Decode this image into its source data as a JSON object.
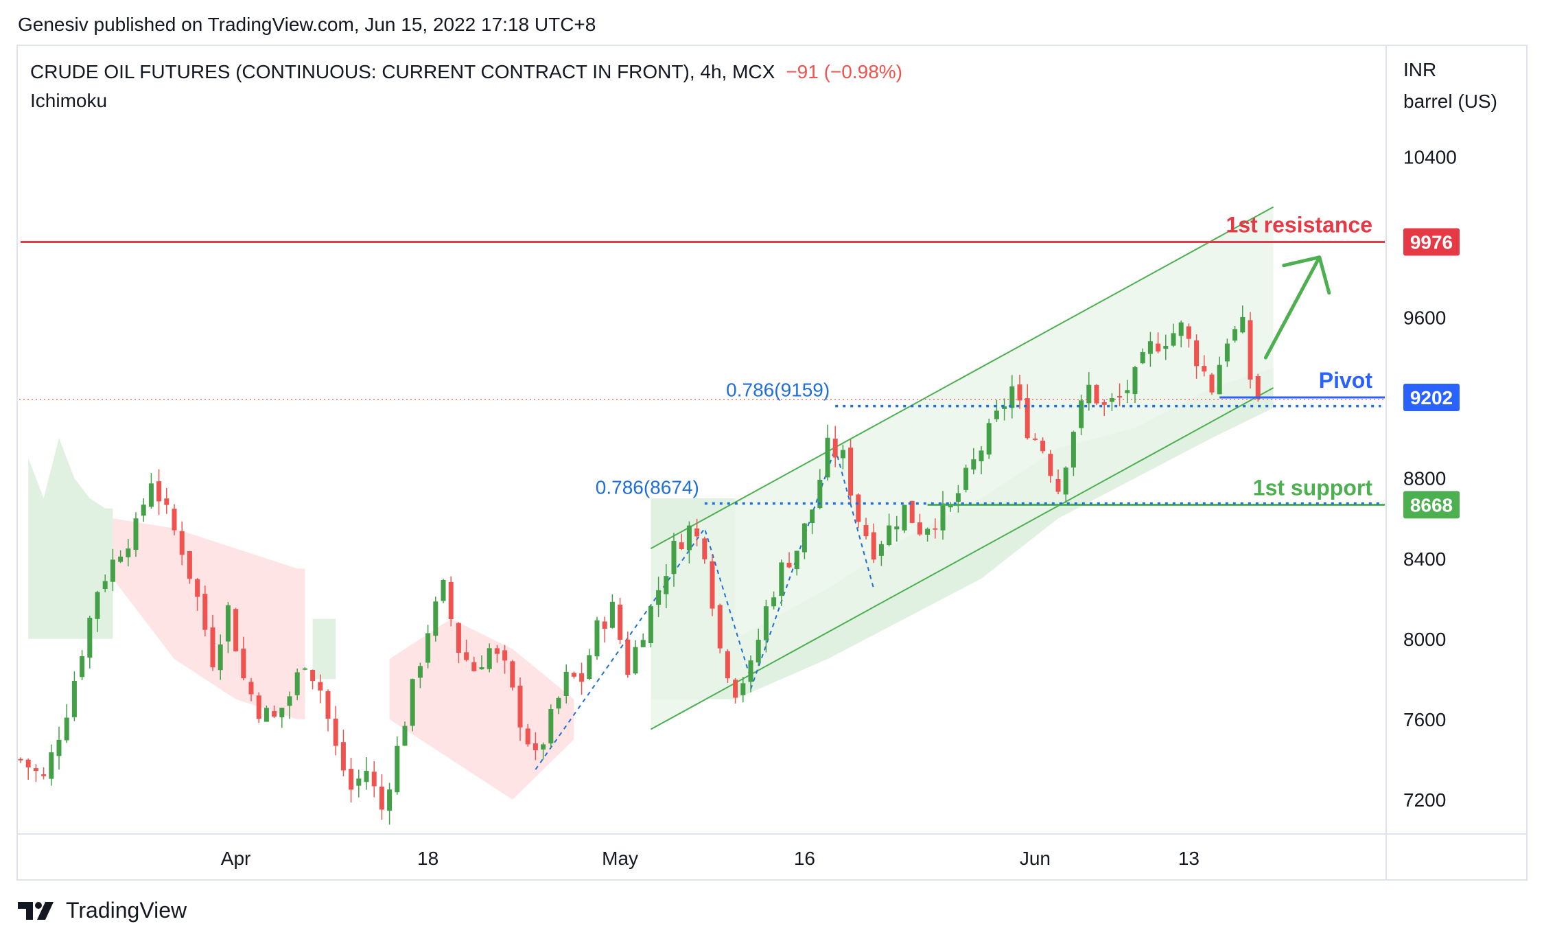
{
  "published": "Genesiv published on TradingView.com, Jun 15, 2022 17:18 UTC+8",
  "header": {
    "symbol": "CRUDE OIL FUTURES (CONTINUOUS: CURRENT CONTRACT IN FRONT), 4h, MCX",
    "change": "−91 (−0.98%)",
    "indicator": "Ichimoku"
  },
  "price_axis": {
    "currency": "INR",
    "unit": "barrel (US)"
  },
  "colors": {
    "up": "#26a69a",
    "up_candle": "#43a047",
    "down": "#ef5350",
    "resistance": "#e53945",
    "pivot": "#2962ff",
    "support": "#4caf50",
    "fib": "#1e6fd9",
    "channel": "#4caf50",
    "cloud_green": "#c8e6c9",
    "cloud_red": "#ffcdd2"
  },
  "footer": {
    "brand": "TradingView"
  },
  "chart_data": {
    "type": "candlestick",
    "title": "CRUDE OIL FUTURES (CONTINUOUS: CURRENT CONTRACT IN FRONT), 4h, MCX",
    "ylim": [
      7000,
      10700
    ],
    "y_ticks": [
      10400,
      9600,
      8800,
      8400,
      8000,
      7600,
      7200
    ],
    "x_ticks": [
      {
        "label": "Apr",
        "idx": 28
      },
      {
        "label": "18",
        "idx": 53
      },
      {
        "label": "May",
        "idx": 78
      },
      {
        "label": "16",
        "idx": 102
      },
      {
        "label": "Jun",
        "idx": 132
      },
      {
        "label": "13",
        "idx": 152
      }
    ],
    "close_path": [
      [
        0,
        7400
      ],
      [
        3,
        7300
      ],
      [
        6,
        7650
      ],
      [
        8,
        7950
      ],
      [
        10,
        8250
      ],
      [
        13,
        8450
      ],
      [
        15,
        8550
      ],
      [
        17,
        8800
      ],
      [
        19,
        8620
      ],
      [
        21,
        8450
      ],
      [
        23,
        8200
      ],
      [
        25,
        7900
      ],
      [
        27,
        8150
      ],
      [
        29,
        7800
      ],
      [
        31,
        7650
      ],
      [
        33,
        7600
      ],
      [
        35,
        7720
      ],
      [
        37,
        7900
      ],
      [
        39,
        7750
      ],
      [
        41,
        7450
      ],
      [
        43,
        7250
      ],
      [
        45,
        7350
      ],
      [
        47,
        7150
      ],
      [
        49,
        7450
      ],
      [
        51,
        7750
      ],
      [
        53,
        8050
      ],
      [
        55,
        8250
      ],
      [
        57,
        7950
      ],
      [
        59,
        7850
      ],
      [
        61,
        7950
      ],
      [
        63,
        7850
      ],
      [
        65,
        7600
      ],
      [
        67,
        7400
      ],
      [
        69,
        7600
      ],
      [
        71,
        7800
      ],
      [
        73,
        7800
      ],
      [
        75,
        8050
      ],
      [
        77,
        8150
      ],
      [
        79,
        7850
      ],
      [
        81,
        8050
      ],
      [
        83,
        8250
      ],
      [
        85,
        8450
      ],
      [
        87,
        8550
      ],
      [
        89,
        8450
      ],
      [
        91,
        7950
      ],
      [
        93,
        7750
      ],
      [
        95,
        7850
      ],
      [
        97,
        8150
      ],
      [
        99,
        8350
      ],
      [
        101,
        8450
      ],
      [
        103,
        8650
      ],
      [
        105,
        8950
      ],
      [
        107,
        8900
      ],
      [
        109,
        8600
      ],
      [
        111,
        8450
      ],
      [
        113,
        8550
      ],
      [
        115,
        8650
      ],
      [
        117,
        8550
      ],
      [
        119,
        8600
      ],
      [
        121,
        8650
      ],
      [
        123,
        8800
      ],
      [
        125,
        8950
      ],
      [
        127,
        9100
      ],
      [
        129,
        9250
      ],
      [
        131,
        9050
      ],
      [
        133,
        8950
      ],
      [
        135,
        8750
      ],
      [
        137,
        9050
      ],
      [
        139,
        9250
      ],
      [
        141,
        9150
      ],
      [
        143,
        9200
      ],
      [
        145,
        9300
      ],
      [
        147,
        9450
      ],
      [
        149,
        9500
      ],
      [
        151,
        9550
      ],
      [
        153,
        9400
      ],
      [
        155,
        9250
      ],
      [
        157,
        9500
      ],
      [
        159,
        9550
      ],
      [
        160,
        9300
      ],
      [
        161,
        9202
      ]
    ],
    "ichimoku_cloud": {
      "green_segments": [
        {
          "from": 1,
          "to": 12,
          "top_path": [
            [
              1,
              8900
            ],
            [
              3,
              8700
            ],
            [
              5,
              9000
            ],
            [
              7,
              8800
            ],
            [
              9,
              8700
            ],
            [
              11,
              8650
            ]
          ],
          "bottom": 8000
        },
        {
          "from": 38,
          "to": 41,
          "top": 8100,
          "bottom": 7800
        },
        {
          "from": 82,
          "to": 93,
          "top": 8700,
          "bottom": 7700
        },
        {
          "from": 93,
          "to": 163,
          "top_path": [
            [
              93,
              8000
            ],
            [
              105,
              8250
            ],
            [
              115,
              8500
            ],
            [
              125,
              8700
            ],
            [
              135,
              8950
            ],
            [
              145,
              9050
            ],
            [
              155,
              9250
            ],
            [
              163,
              9350
            ]
          ],
          "bottom_path": [
            [
              93,
              7700
            ],
            [
              105,
              7900
            ],
            [
              115,
              8100
            ],
            [
              125,
              8300
            ],
            [
              135,
              8600
            ],
            [
              145,
              8800
            ],
            [
              155,
              9000
            ],
            [
              163,
              9150
            ]
          ]
        }
      ],
      "red_segments": [
        {
          "from": 12,
          "to": 37,
          "top_path": [
            [
              12,
              8600
            ],
            [
              20,
              8550
            ],
            [
              28,
              8450
            ],
            [
              36,
              8350
            ]
          ],
          "bottom_path": [
            [
              12,
              8300
            ],
            [
              20,
              7900
            ],
            [
              28,
              7700
            ],
            [
              36,
              7600
            ]
          ]
        },
        {
          "from": 48,
          "to": 72,
          "top_path": [
            [
              48,
              7900
            ],
            [
              56,
              8100
            ],
            [
              64,
              7950
            ],
            [
              72,
              7700
            ]
          ],
          "bottom_path": [
            [
              48,
              7600
            ],
            [
              56,
              7400
            ],
            [
              64,
              7200
            ],
            [
              72,
              7500
            ]
          ]
        }
      ]
    },
    "channel": {
      "upper": {
        "from": [
          82,
          8450
        ],
        "to": [
          163,
          10150
        ]
      },
      "lower": {
        "from": [
          82,
          7550
        ],
        "to": [
          163,
          9250
        ]
      },
      "fill_right_idx": 163
    },
    "levels": [
      {
        "name": "1st resistance",
        "value": 9976,
        "label": "9976",
        "style": "solid",
        "color": "#e53945",
        "from_idx": 0
      },
      {
        "name": "Pivot",
        "value": 9202,
        "label": "9202",
        "style": "solid",
        "color": "#2962ff",
        "from_idx": 156
      },
      {
        "name": "1st support",
        "value": 8668,
        "label": "8668",
        "style": "solid",
        "color": "#4caf50",
        "from_idx": 118
      }
    ],
    "fib_lines": [
      {
        "label": "0.786(9159)",
        "value": 9159,
        "from_idx": 106,
        "to_idx": 177
      },
      {
        "label": "0.786(8674)",
        "value": 8674,
        "from_idx": 89,
        "to_idx": 177
      }
    ],
    "fib_swings": [
      [
        [
          67,
          7350
        ],
        [
          89,
          8550
        ],
        [
          95,
          7800
        ]
      ],
      [
        [
          95,
          7750
        ],
        [
          106,
          8950
        ],
        [
          111,
          8250
        ]
      ]
    ],
    "current_price": 9202,
    "arrow": {
      "from": [
        162,
        9400
      ],
      "to": [
        169,
        9900
      ]
    }
  }
}
